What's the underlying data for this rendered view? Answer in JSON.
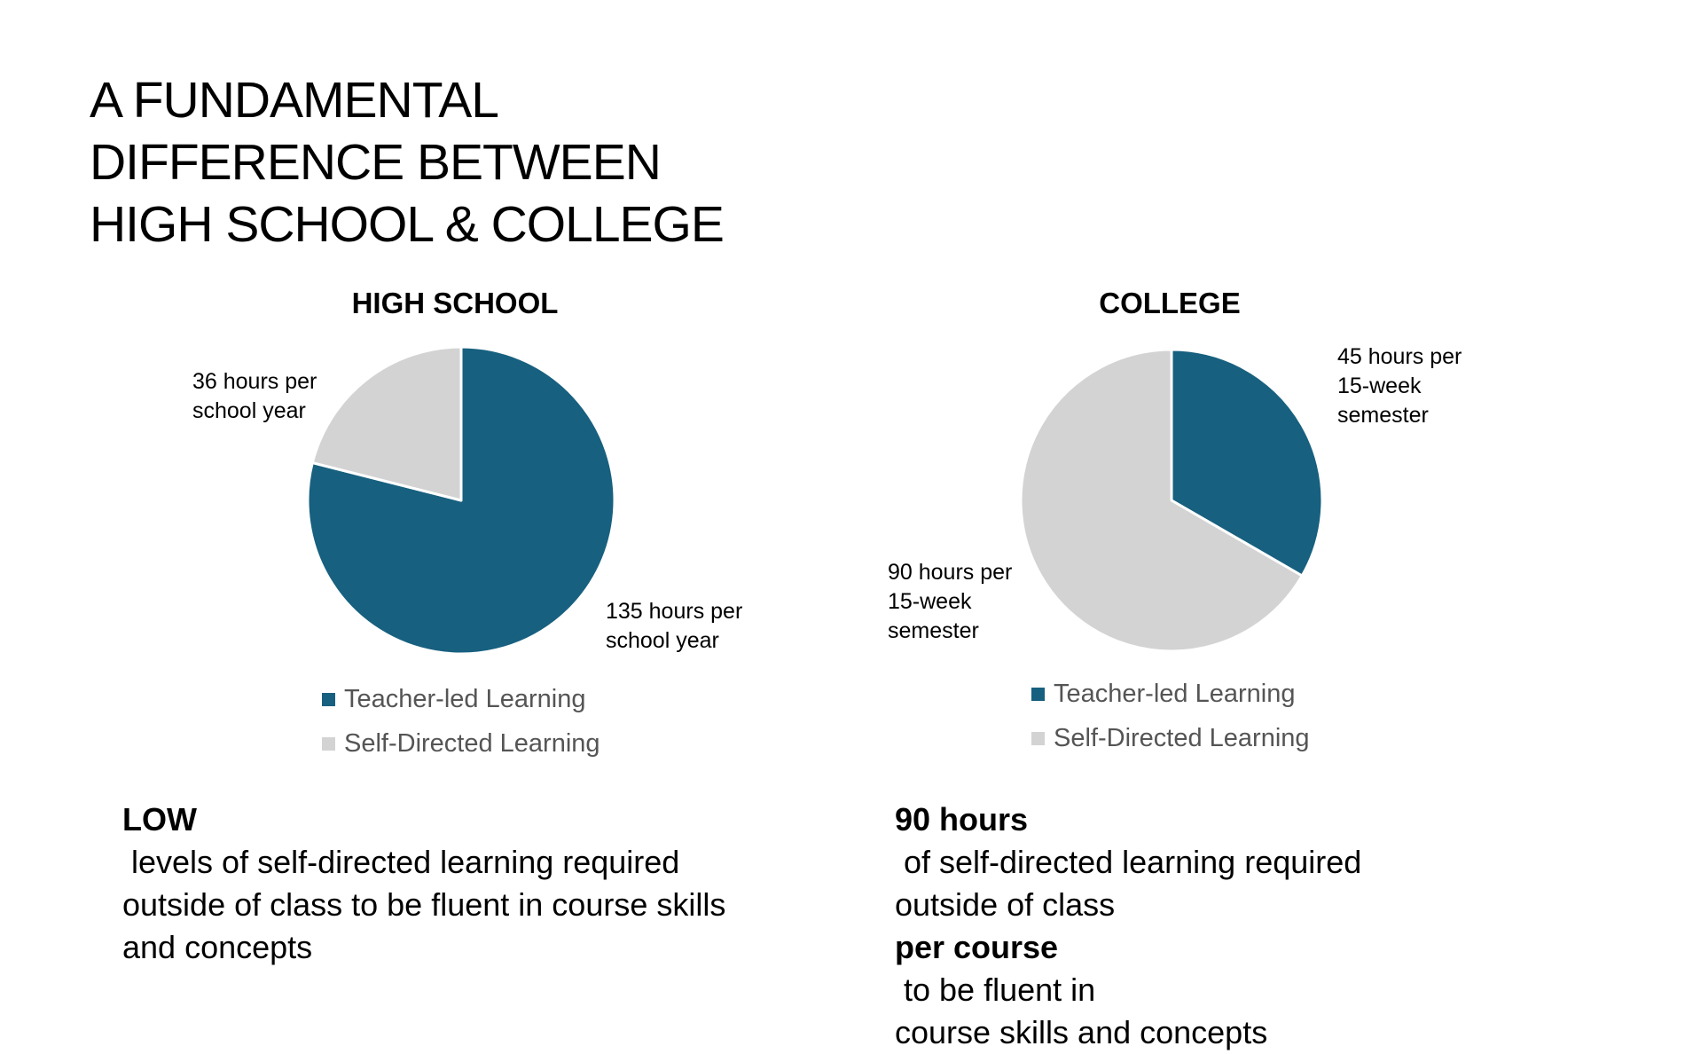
{
  "slide": {
    "title_lines": [
      "A FUNDAMENTAL",
      "DIFFERENCE BETWEEN",
      "HIGH SCHOOL & COLLEGE"
    ]
  },
  "colors": {
    "teacher": "#17607F",
    "self": "#D3D3D3"
  },
  "legend": [
    "Teacher-led Learning",
    "Self-Directed Learning"
  ],
  "chart_data": [
    {
      "type": "pie",
      "title": "HIGH SCHOOL",
      "legend_position": "bottom",
      "slices": [
        {
          "name": "Teacher-led Learning",
          "value": 135,
          "label_lines": [
            "135 hours per",
            "school year"
          ]
        },
        {
          "name": "Self-Directed Learning",
          "value": 36,
          "label_lines": [
            "36 hours per",
            "school year"
          ]
        }
      ]
    },
    {
      "type": "pie",
      "title": "COLLEGE",
      "legend_position": "bottom",
      "slices": [
        {
          "name": "Teacher-led Learning",
          "value": 45,
          "label_lines": [
            "45 hours per",
            "15-week",
            "semester"
          ]
        },
        {
          "name": "Self-Directed Learning",
          "value": 90,
          "label_lines": [
            "90 hours per",
            "15-week",
            "semester"
          ]
        }
      ]
    }
  ],
  "captions": [
    {
      "lines": [
        [
          {
            "text": "LOW",
            "bold": true
          },
          {
            "text": " levels of self-directed learning required",
            "bold": false
          }
        ],
        [
          {
            "text": "outside of class to be fluent in course skills",
            "bold": false
          }
        ],
        [
          {
            "text": "and concepts",
            "bold": false
          }
        ]
      ]
    },
    {
      "lines": [
        [
          {
            "text": "90 hours",
            "bold": true
          },
          {
            "text": " of self-directed learning required",
            "bold": false
          }
        ],
        [
          {
            "text": "outside of class ",
            "bold": false
          },
          {
            "text": "per course",
            "bold": true
          },
          {
            "text": " to be fluent in",
            "bold": false
          }
        ],
        [
          {
            "text": "course skills and concepts",
            "bold": false
          }
        ]
      ]
    }
  ]
}
